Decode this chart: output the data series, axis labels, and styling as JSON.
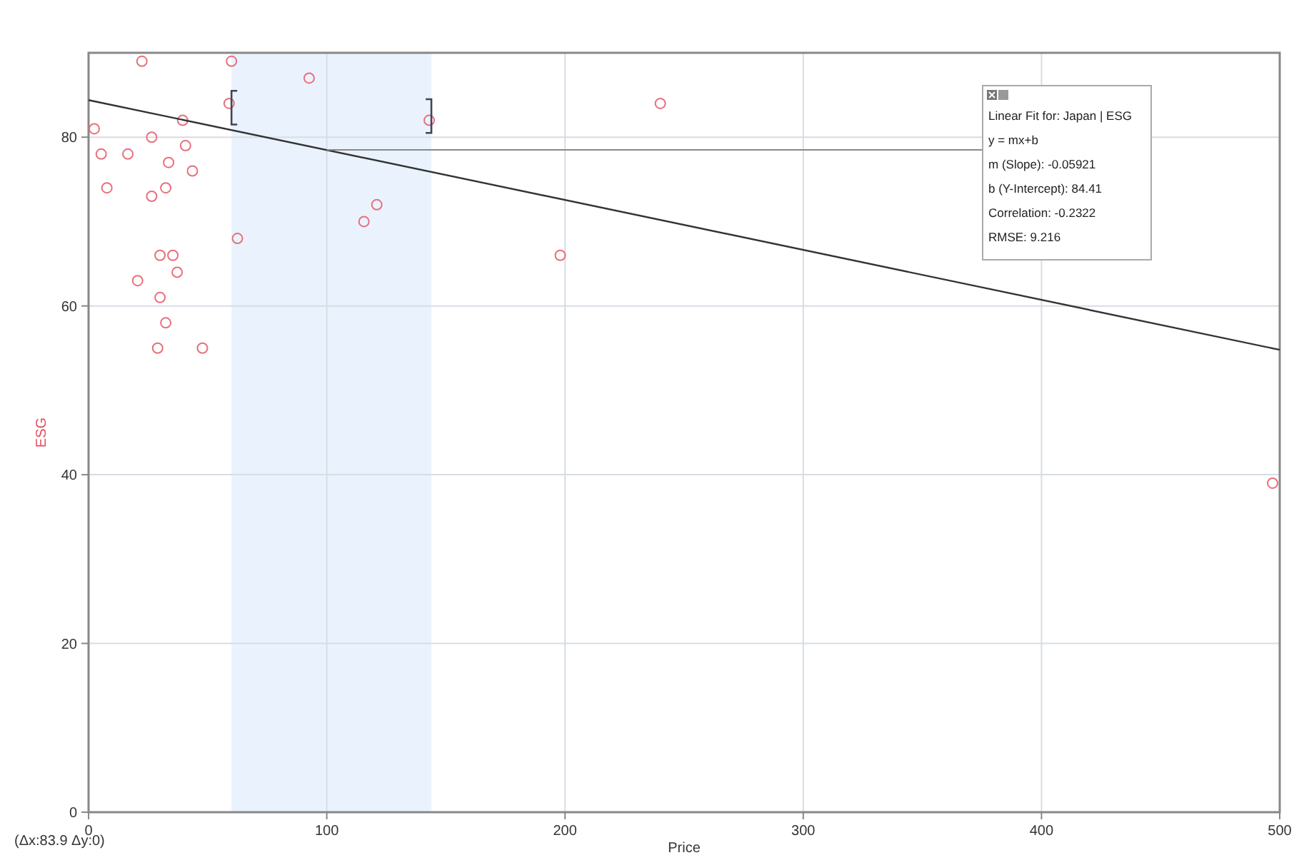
{
  "chart_data": {
    "type": "scatter",
    "xlabel": "Price",
    "ylabel": "ESG",
    "xlim": [
      0,
      500
    ],
    "ylim": [
      0,
      90
    ],
    "xticks": [
      0,
      100,
      200,
      300,
      400,
      500
    ],
    "yticks": [
      0,
      20,
      40,
      60,
      80
    ],
    "grid": true,
    "marker": "circle",
    "series": [
      {
        "color": "#e8707c",
        "x": [
          22.4,
          60,
          92.6,
          59,
          2.4,
          39.5,
          26.5,
          40.7,
          5.3,
          16.5,
          33.6,
          43.6,
          7.7,
          32.4,
          26.5,
          121,
          115.6,
          62.5,
          30,
          35.4,
          37.2,
          20.6,
          30,
          32.4,
          29,
          47.8,
          143,
          198,
          240,
          497
        ],
        "values": [
          89,
          89,
          87,
          84,
          81,
          82,
          80,
          79,
          78,
          78,
          77,
          76,
          74,
          74,
          73,
          72,
          70,
          68,
          66,
          66,
          64,
          63,
          61,
          58,
          55,
          55,
          82,
          66,
          84,
          39
        ]
      },
      {
        "type": "line",
        "marker": "none",
        "color": "#333333",
        "x": [
          0,
          500
        ],
        "values": [
          84.4,
          54.8
        ]
      }
    ],
    "bands": [
      {
        "axis": "x",
        "from": 60,
        "to": 143.9,
        "color": "#eaf3fd"
      }
    ],
    "annotations": [
      "Linear Fit for: Japan | ESG",
      "y = mx+b",
      "m (Slope): -0.05921",
      "b (Y-Intercept): 84.41",
      "Correlation: -0.2322",
      "RMSE: 9.216",
      "(Δx:83.9 Δy:0)"
    ]
  }
}
